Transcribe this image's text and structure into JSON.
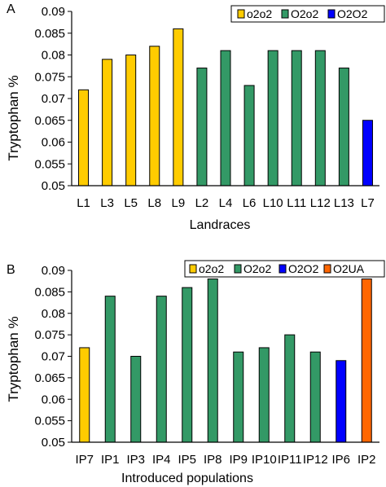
{
  "chart_data": [
    {
      "type": "bar",
      "panel_letter": "A",
      "xlabel": "Landraces",
      "ylabel": "Tryptophan %",
      "ylim": [
        0.05,
        0.09
      ],
      "yticks": [
        "0.05",
        "0.055",
        "0.06",
        "0.065",
        "0.07",
        "0.075",
        "0.08",
        "0.085",
        "0.09"
      ],
      "categories": [
        "L1",
        "L3",
        "L5",
        "L8",
        "L9",
        "L2",
        "L4",
        "L6",
        "L10",
        "L11",
        "L12",
        "L13",
        "L7"
      ],
      "values": [
        0.072,
        0.079,
        0.08,
        0.082,
        0.086,
        0.077,
        0.081,
        0.073,
        0.081,
        0.081,
        0.081,
        0.077,
        0.065
      ],
      "groups": [
        "o2o2",
        "o2o2",
        "o2o2",
        "o2o2",
        "o2o2",
        "O2o2",
        "O2o2",
        "O2o2",
        "O2o2",
        "O2o2",
        "O2o2",
        "O2o2",
        "O2O2"
      ],
      "legend": [
        {
          "name": "o2o2",
          "color": "#FFCC00"
        },
        {
          "name": "O2o2",
          "color": "#339966"
        },
        {
          "name": "O2O2",
          "color": "#0000FF"
        }
      ],
      "legend_position": "top-right",
      "grid": false
    },
    {
      "type": "bar",
      "panel_letter": "B",
      "xlabel": "Introduced populations",
      "ylabel": "Tryptophan %",
      "ylim": [
        0.05,
        0.09
      ],
      "yticks": [
        "0.05",
        "0.055",
        "0.06",
        "0.065",
        "0.07",
        "0.075",
        "0.08",
        "0.085",
        "0.09"
      ],
      "categories": [
        "IP7",
        "IP1",
        "IP3",
        "IP4",
        "IP5",
        "IP8",
        "IP9",
        "IP10",
        "IP11",
        "IP12",
        "IP6",
        "IP2"
      ],
      "values": [
        0.072,
        0.084,
        0.07,
        0.084,
        0.086,
        0.088,
        0.071,
        0.072,
        0.075,
        0.071,
        0.069,
        0.088
      ],
      "groups": [
        "o2o2",
        "O2o2",
        "O2o2",
        "O2o2",
        "O2o2",
        "O2o2",
        "O2o2",
        "O2o2",
        "O2o2",
        "O2o2",
        "O2O2",
        "O2UA"
      ],
      "legend": [
        {
          "name": "o2o2",
          "color": "#FFCC00"
        },
        {
          "name": "O2o2",
          "color": "#339966"
        },
        {
          "name": "O2O2",
          "color": "#0000FF"
        },
        {
          "name": "O2UA",
          "color": "#FF6600"
        }
      ],
      "legend_position": "top-right",
      "grid": false
    }
  ]
}
